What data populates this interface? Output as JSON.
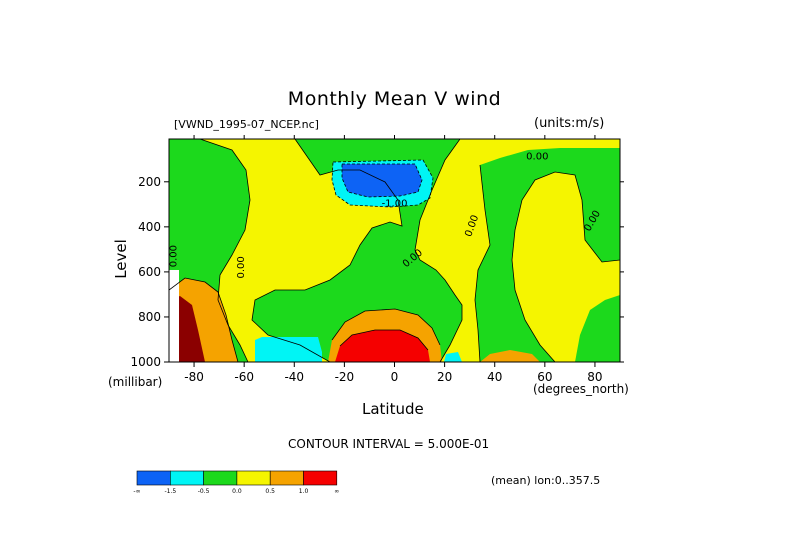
{
  "chart_data": {
    "type": "heatmap",
    "title": "Monthly Mean V wind",
    "file_label": "[VWND_1995-07_NCEP.nc]",
    "units_label": "(units:m/s)",
    "xlabel": "Latitude",
    "x_units": "(degrees_north)",
    "ylabel": "Level",
    "y_units": "(millibar)",
    "xlim": [
      -90,
      90
    ],
    "ylim": [
      1000,
      10
    ],
    "x_ticks": [
      -80,
      -60,
      -40,
      -20,
      0,
      20,
      40,
      60,
      80
    ],
    "x_tick_labels": [
      "-80",
      "-60",
      "-40",
      "-20",
      "0",
      "20",
      "40",
      "60",
      "80"
    ],
    "y_ticks": [
      200,
      400,
      600,
      800,
      1000
    ],
    "y_tick_labels": [
      "200",
      "400",
      "600",
      "800",
      "1000"
    ],
    "contour_interval": "CONTOUR INTERVAL = 5.000E-01",
    "mean_note": "(mean) lon:0..357.5",
    "contour_labels": [
      {
        "text": "0.00",
        "x": -87,
        "y": 530,
        "rotate": -90
      },
      {
        "text": "0.00",
        "x": -60,
        "y": 580,
        "rotate": -90
      },
      {
        "text": "-1.00",
        "x": 0,
        "y": 310
      },
      {
        "text": "0.00",
        "x": 8,
        "y": 550,
        "rotate": -40
      },
      {
        "text": "0.00",
        "x": 32,
        "y": 400,
        "rotate": -70
      },
      {
        "text": "0.00",
        "x": 57,
        "y": 100
      },
      {
        "text": "0.00",
        "x": 80,
        "y": 380,
        "rotate": -60
      }
    ],
    "colorbar": {
      "levels": [
        "-∞",
        "-1.5",
        "-0.5",
        "0.0",
        "0.5",
        "1.0",
        "∞"
      ],
      "colors": [
        "#0d63f5",
        "#00f5f5",
        "#1cd91c",
        "#f5f500",
        "#f5a300",
        "#f50000"
      ]
    },
    "palette": {
      "strong_south": "#0d63f5",
      "south": "#00f5f5",
      "near_zero_neg": "#1cd91c",
      "near_zero_pos": "#f5f500",
      "north": "#f5a300",
      "strong_north": "#f50000",
      "very_strong_north": "#8b0000"
    }
  }
}
